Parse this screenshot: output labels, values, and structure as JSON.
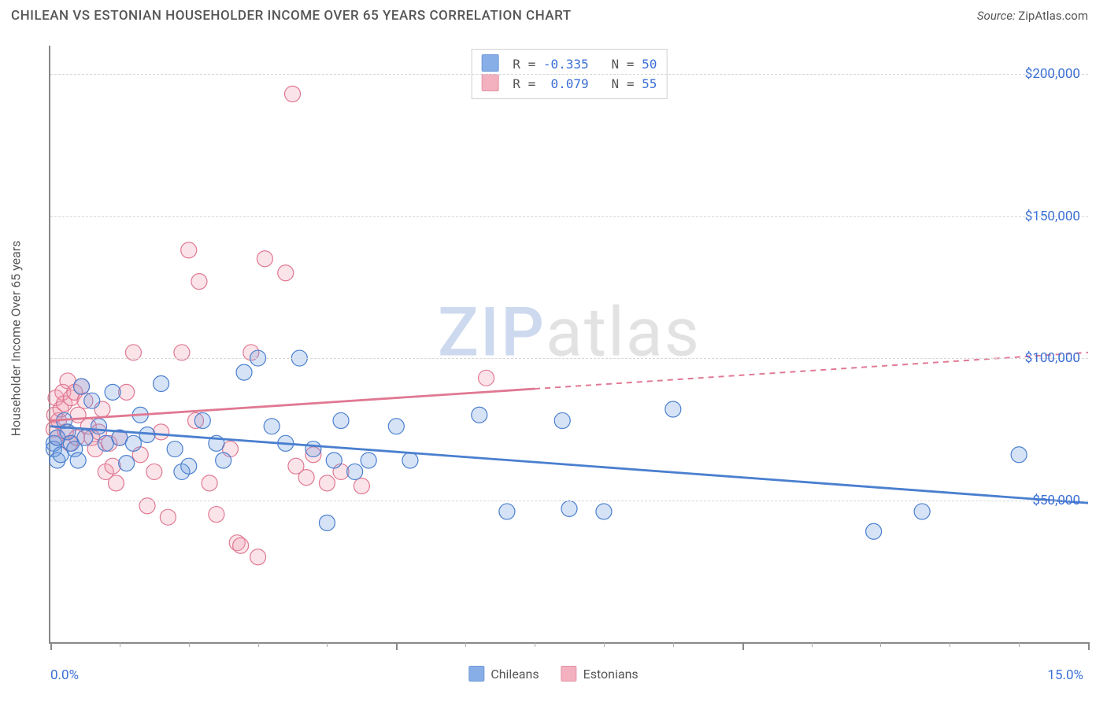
{
  "title": "CHILEAN VS ESTONIAN HOUSEHOLDER INCOME OVER 65 YEARS CORRELATION CHART",
  "source_label": "Source:",
  "source_value": "ZipAtlas.com",
  "watermark": {
    "part1": "ZIP",
    "part2": "atlas"
  },
  "ylabel": "Householder Income Over 65 years",
  "chart": {
    "type": "scatter",
    "background_color": "#ffffff",
    "grid_color": "#d8d8d8",
    "axis_color": "#888888",
    "xlim": [
      0,
      15
    ],
    "ylim": [
      0,
      210000
    ],
    "x_tick_label_left": "0.0%",
    "x_tick_label_right": "15.0%",
    "x_major_ticks": [
      0,
      5,
      10,
      15
    ],
    "x_minor_ticks": [
      1,
      2,
      3,
      4,
      6,
      7,
      8,
      9,
      11,
      12,
      13,
      14
    ],
    "y_gridlines": [
      50000,
      100000,
      150000,
      200000
    ],
    "y_tick_labels": [
      "$50,000",
      "$100,000",
      "$150,000",
      "$200,000"
    ],
    "marker_radius": 10,
    "marker_stroke_width": 1.2,
    "marker_fill_opacity": 0.28,
    "trend_line_width": 2.8,
    "series": {
      "chileans": {
        "label": "Chileans",
        "color": "#6a9ae0",
        "stroke": "#4a7fcf",
        "R": "-0.335",
        "N": "50",
        "trend": {
          "y_at_x0": 76000,
          "y_at_x15": 49000,
          "solid_to_x": 15,
          "dashed_from_x": 15
        },
        "points": [
          [
            0.05,
            70000
          ],
          [
            0.05,
            68000
          ],
          [
            0.1,
            64000
          ],
          [
            0.1,
            72000
          ],
          [
            0.15,
            66000
          ],
          [
            0.2,
            78000
          ],
          [
            0.25,
            74000
          ],
          [
            0.3,
            70000
          ],
          [
            0.35,
            68000
          ],
          [
            0.4,
            64000
          ],
          [
            0.45,
            90000
          ],
          [
            0.5,
            72000
          ],
          [
            0.6,
            85000
          ],
          [
            0.7,
            76000
          ],
          [
            0.8,
            70000
          ],
          [
            0.9,
            88000
          ],
          [
            1.0,
            72000
          ],
          [
            1.1,
            63000
          ],
          [
            1.2,
            70000
          ],
          [
            1.3,
            80000
          ],
          [
            1.4,
            73000
          ],
          [
            1.6,
            91000
          ],
          [
            1.8,
            68000
          ],
          [
            1.9,
            60000
          ],
          [
            2.0,
            62000
          ],
          [
            2.2,
            78000
          ],
          [
            2.4,
            70000
          ],
          [
            2.5,
            64000
          ],
          [
            2.8,
            95000
          ],
          [
            3.0,
            100000
          ],
          [
            3.2,
            76000
          ],
          [
            3.4,
            70000
          ],
          [
            3.6,
            100000
          ],
          [
            3.8,
            68000
          ],
          [
            4.0,
            42000
          ],
          [
            4.1,
            64000
          ],
          [
            4.2,
            78000
          ],
          [
            4.4,
            60000
          ],
          [
            4.6,
            64000
          ],
          [
            5.0,
            76000
          ],
          [
            5.2,
            64000
          ],
          [
            6.2,
            80000
          ],
          [
            6.6,
            46000
          ],
          [
            7.4,
            78000
          ],
          [
            7.5,
            47000
          ],
          [
            8.0,
            46000
          ],
          [
            9.0,
            82000
          ],
          [
            11.9,
            39000
          ],
          [
            12.6,
            46000
          ],
          [
            14.0,
            66000
          ]
        ]
      },
      "estonians": {
        "label": "Estonians",
        "color": "#f19eb0",
        "stroke": "#e07892",
        "R": "0.079",
        "N": "55",
        "trend": {
          "y_at_x0": 78000,
          "y_at_x15": 102000,
          "solid_to_x": 7,
          "dashed_from_x": 7
        },
        "points": [
          [
            0.05,
            75000
          ],
          [
            0.06,
            80000
          ],
          [
            0.08,
            86000
          ],
          [
            0.1,
            72000
          ],
          [
            0.12,
            78000
          ],
          [
            0.15,
            82000
          ],
          [
            0.18,
            88000
          ],
          [
            0.2,
            84000
          ],
          [
            0.22,
            74000
          ],
          [
            0.25,
            92000
          ],
          [
            0.28,
            70000
          ],
          [
            0.3,
            86000
          ],
          [
            0.35,
            88000
          ],
          [
            0.38,
            72000
          ],
          [
            0.4,
            80000
          ],
          [
            0.45,
            90000
          ],
          [
            0.5,
            85000
          ],
          [
            0.55,
            76000
          ],
          [
            0.6,
            72000
          ],
          [
            0.65,
            68000
          ],
          [
            0.7,
            74000
          ],
          [
            0.75,
            82000
          ],
          [
            0.8,
            60000
          ],
          [
            0.85,
            70000
          ],
          [
            0.9,
            62000
          ],
          [
            0.95,
            56000
          ],
          [
            1.0,
            72000
          ],
          [
            1.1,
            88000
          ],
          [
            1.2,
            102000
          ],
          [
            1.3,
            66000
          ],
          [
            1.4,
            48000
          ],
          [
            1.5,
            60000
          ],
          [
            1.6,
            74000
          ],
          [
            1.7,
            44000
          ],
          [
            1.9,
            102000
          ],
          [
            2.0,
            138000
          ],
          [
            2.1,
            78000
          ],
          [
            2.15,
            127000
          ],
          [
            2.3,
            56000
          ],
          [
            2.4,
            45000
          ],
          [
            2.6,
            68000
          ],
          [
            2.7,
            35000
          ],
          [
            2.75,
            34000
          ],
          [
            2.9,
            102000
          ],
          [
            3.0,
            30000
          ],
          [
            3.1,
            135000
          ],
          [
            3.4,
            130000
          ],
          [
            3.5,
            193000
          ],
          [
            3.55,
            62000
          ],
          [
            3.7,
            58000
          ],
          [
            3.8,
            66000
          ],
          [
            4.0,
            56000
          ],
          [
            4.2,
            60000
          ],
          [
            4.5,
            55000
          ],
          [
            6.3,
            93000
          ]
        ]
      }
    }
  }
}
